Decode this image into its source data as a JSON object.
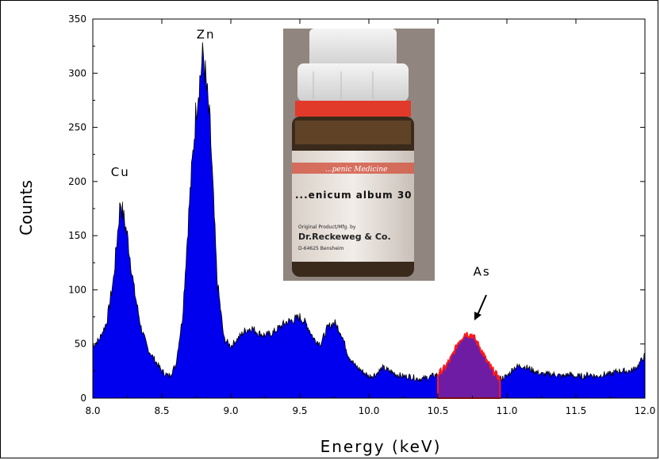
{
  "chart_data": {
    "type": "area",
    "xlabel": "Energy (keV)",
    "ylabel": "Counts",
    "xlim": [
      8.0,
      12.0
    ],
    "ylim": [
      0,
      350
    ],
    "x_ticks": [
      "8.0",
      "8.5",
      "9.0",
      "9.5",
      "10.0",
      "10.5",
      "11.0",
      "11.5",
      "12.0"
    ],
    "y_ticks": [
      "0",
      "50",
      "100",
      "150",
      "200",
      "250",
      "300",
      "350"
    ],
    "grid": false,
    "legend": "none",
    "colors": {
      "fill": "#0000ee",
      "highlight_fill": "#7a1f9a",
      "highlight_outline": "#ff1a1a"
    },
    "series": [
      {
        "x": [
          8.0,
          8.05,
          8.1,
          8.15,
          8.2,
          8.25,
          8.3,
          8.35,
          8.4,
          8.45,
          8.5,
          8.55,
          8.6,
          8.65,
          8.7,
          8.75,
          8.8,
          8.85,
          8.9,
          8.95,
          9.0,
          9.05,
          9.1,
          9.15,
          9.2,
          9.25,
          9.3,
          9.35,
          9.4,
          9.45,
          9.5,
          9.55,
          9.6,
          9.65,
          9.7,
          9.75,
          9.8,
          9.85,
          9.9,
          9.95,
          10.0,
          10.05,
          10.1,
          10.15,
          10.2,
          10.25,
          10.3,
          10.35,
          10.4,
          10.45,
          10.5,
          10.55,
          10.6,
          10.65,
          10.7,
          10.75,
          10.8,
          10.85,
          10.9,
          10.95,
          11.0,
          11.05,
          11.1,
          11.15,
          11.2,
          11.25,
          11.3,
          11.35,
          11.4,
          11.45,
          11.5,
          11.55,
          11.6,
          11.65,
          11.7,
          11.75,
          11.8,
          11.85,
          11.9,
          11.95,
          12.0
        ],
        "values": [
          48,
          55,
          70,
          110,
          182,
          150,
          100,
          65,
          45,
          35,
          25,
          20,
          30,
          75,
          180,
          270,
          318,
          250,
          110,
          55,
          48,
          55,
          62,
          65,
          60,
          58,
          60,
          65,
          70,
          72,
          75,
          68,
          55,
          50,
          65,
          70,
          60,
          40,
          30,
          25,
          20,
          22,
          28,
          25,
          22,
          20,
          20,
          18,
          18,
          20,
          22,
          28,
          38,
          52,
          60,
          58,
          48,
          35,
          25,
          18,
          20,
          28,
          30,
          28,
          25,
          22,
          22,
          22,
          20,
          22,
          20,
          20,
          22,
          20,
          22,
          22,
          25,
          25,
          25,
          30,
          40
        ]
      }
    ],
    "highlight": {
      "x_range": [
        10.5,
        10.95
      ]
    },
    "annotations": [
      {
        "text": "Cu",
        "x": 8.2,
        "y": 205
      },
      {
        "text": "Zn",
        "x": 8.82,
        "y": 332
      },
      {
        "text": "As",
        "x": 10.82,
        "y": 113
      }
    ],
    "inset": {
      "type": "photo",
      "description_label": "bottle-photo",
      "texts": [
        "...penic Medicine",
        "...enicum album 30",
        "Original Product/Mfg. by",
        "Dr.Reckeweg & Co.",
        "D-64625 Bensheim"
      ]
    }
  }
}
